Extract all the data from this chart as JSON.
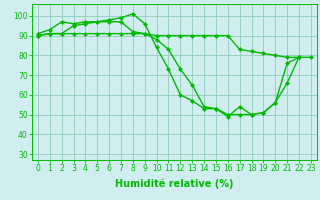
{
  "s1_x": [
    0,
    1,
    2,
    3,
    4,
    5,
    6,
    7,
    8,
    9,
    10,
    11,
    12,
    13,
    14,
    15,
    16,
    17,
    18,
    19,
    20,
    21,
    22
  ],
  "s1_y": [
    91,
    93,
    97,
    96,
    97,
    97,
    98,
    99,
    101,
    96,
    84,
    73,
    60,
    57,
    53,
    53,
    49,
    54,
    50,
    51,
    56,
    76,
    79
  ],
  "s2_x": [
    0,
    1,
    2,
    3,
    4,
    5,
    6,
    7,
    8,
    9,
    10,
    11,
    12,
    13,
    14,
    15,
    16,
    17,
    18,
    19,
    20,
    21,
    22
  ],
  "s2_y": [
    90,
    91,
    91,
    95,
    96,
    97,
    97,
    97,
    92,
    91,
    88,
    83,
    73,
    65,
    54,
    53,
    50,
    50,
    50,
    51,
    56,
    66,
    79
  ],
  "s3_x": [
    0,
    1,
    2,
    3,
    4,
    5,
    6,
    7,
    8,
    9,
    10,
    11,
    12,
    13,
    14,
    15,
    16,
    17,
    18,
    19,
    20,
    21,
    22,
    23
  ],
  "s3_y": [
    90,
    91,
    91,
    91,
    91,
    91,
    91,
    91,
    91,
    91,
    90,
    90,
    90,
    90,
    90,
    90,
    90,
    83,
    82,
    81,
    80,
    79,
    79,
    79
  ],
  "line_color": "#00bb00",
  "marker": "D",
  "marker_size": 2.5,
  "background_color": "#d0eef0",
  "grid_color": "#90ccbb",
  "xlabel": "Humidité relative (%)",
  "xlim": [
    -0.5,
    23.5
  ],
  "ylim": [
    27,
    106
  ],
  "yticks": [
    30,
    40,
    50,
    60,
    70,
    80,
    90,
    100
  ],
  "xticks": [
    0,
    1,
    2,
    3,
    4,
    5,
    6,
    7,
    8,
    9,
    10,
    11,
    12,
    13,
    14,
    15,
    16,
    17,
    18,
    19,
    20,
    21,
    22,
    23
  ],
  "xtick_labels": [
    "0",
    "1",
    "2",
    "3",
    "4",
    "5",
    "6",
    "7",
    "8",
    "9",
    "10",
    "11",
    "12",
    "13",
    "14",
    "15",
    "16",
    "17",
    "18",
    "19",
    "20",
    "21",
    "22",
    "23"
  ],
  "xlabel_fontsize": 7,
  "tick_fontsize": 5.5,
  "line_width": 1.0
}
